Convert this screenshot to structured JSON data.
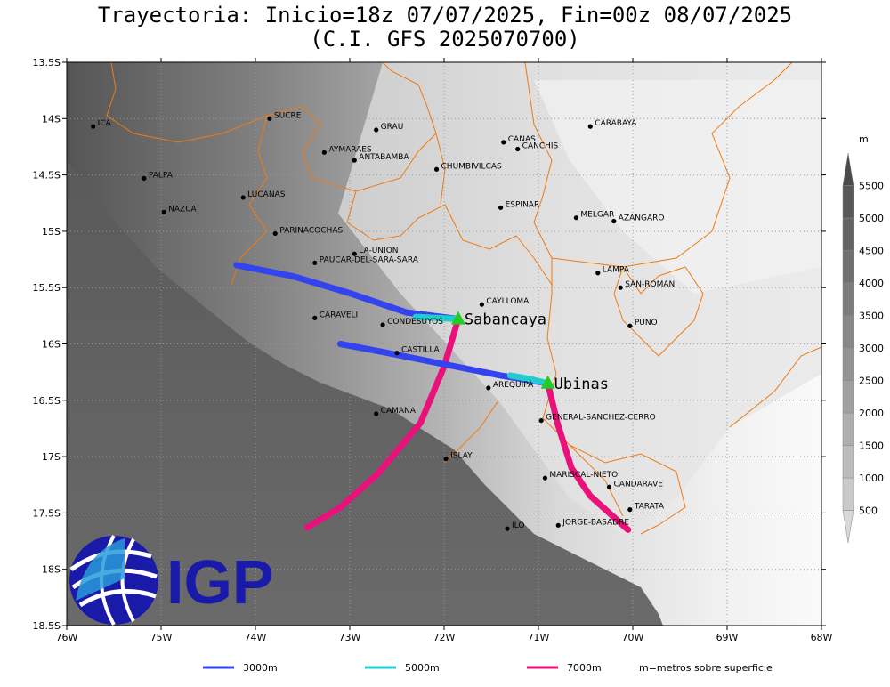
{
  "title": {
    "line1": "Trayectoria: Inicio=18z 07/07/2025, Fin=00z 08/07/2025",
    "line2": "(C.I. GFS 2025070700)"
  },
  "axes": {
    "lat_ticks": [
      "13.5S",
      "14S",
      "14.5S",
      "15S",
      "15.5S",
      "16S",
      "16.5S",
      "17S",
      "17.5S",
      "18S",
      "18.5S"
    ],
    "lon_ticks": [
      "76W",
      "75W",
      "74W",
      "73W",
      "72W",
      "71W",
      "70W",
      "69W",
      "68W"
    ],
    "lat_range": [
      -18.5,
      -13.5
    ],
    "lon_range": [
      -76,
      -68
    ]
  },
  "places": [
    {
      "name": "ICA",
      "lon": -75.72,
      "lat": -14.07
    },
    {
      "name": "SUCRE",
      "lon": -73.85,
      "lat": -14.0
    },
    {
      "name": "GRAU",
      "lon": -72.72,
      "lat": -14.1
    },
    {
      "name": "AYMARAES",
      "lon": -73.27,
      "lat": -14.3
    },
    {
      "name": "ANTABAMBA",
      "lon": -72.95,
      "lat": -14.37
    },
    {
      "name": "CHUMBIVILCAS",
      "lon": -72.08,
      "lat": -14.45
    },
    {
      "name": "CANAS",
      "lon": -71.37,
      "lat": -14.21
    },
    {
      "name": "CANCHIS",
      "lon": -71.22,
      "lat": -14.27
    },
    {
      "name": "CARABAYA",
      "lon": -70.45,
      "lat": -14.07
    },
    {
      "name": "PALPA",
      "lon": -75.18,
      "lat": -14.53
    },
    {
      "name": "LUCANAS",
      "lon": -74.13,
      "lat": -14.7
    },
    {
      "name": "NAZCA",
      "lon": -74.97,
      "lat": -14.83
    },
    {
      "name": "ESPINAR",
      "lon": -71.4,
      "lat": -14.79
    },
    {
      "name": "MELGAR",
      "lon": -70.6,
      "lat": -14.88
    },
    {
      "name": "AZANGARO",
      "lon": -70.2,
      "lat": -14.91
    },
    {
      "name": "PARINACOCHAS",
      "lon": -73.79,
      "lat": -15.02
    },
    {
      "name": "LA-UNION",
      "lon": -72.95,
      "lat": -15.2
    },
    {
      "name": "PAUCAR-DEL-SARA-SARA",
      "lon": -73.37,
      "lat": -15.28
    },
    {
      "name": "LAMPA",
      "lon": -70.37,
      "lat": -15.37
    },
    {
      "name": "SAN-ROMAN",
      "lon": -70.13,
      "lat": -15.5
    },
    {
      "name": "CAYLLOMA",
      "lon": -71.6,
      "lat": -15.65
    },
    {
      "name": "CARAVELI",
      "lon": -73.37,
      "lat": -15.77
    },
    {
      "name": "CONDESUYOS",
      "lon": -72.65,
      "lat": -15.83
    },
    {
      "name": "PUNO",
      "lon": -70.03,
      "lat": -15.84
    },
    {
      "name": "CASTILLA",
      "lon": -72.5,
      "lat": -16.08
    },
    {
      "name": "AREQUIPA",
      "lon": -71.53,
      "lat": -16.39
    },
    {
      "name": "CAMANA",
      "lon": -72.72,
      "lat": -16.62
    },
    {
      "name": "GENERAL-SANCHEZ-CERRO",
      "lon": -70.97,
      "lat": -16.68
    },
    {
      "name": "ISLAY",
      "lon": -71.98,
      "lat": -17.02
    },
    {
      "name": "MARISCAL-NIETO",
      "lon": -70.93,
      "lat": -17.19
    },
    {
      "name": "CANDARAVE",
      "lon": -70.25,
      "lat": -17.27
    },
    {
      "name": "TARATA",
      "lon": -70.03,
      "lat": -17.47
    },
    {
      "name": "ILO",
      "lon": -71.33,
      "lat": -17.64
    },
    {
      "name": "JORGE-BASADRE",
      "lon": -70.79,
      "lat": -17.61
    }
  ],
  "volcanoes": [
    {
      "name": "Sabancaya",
      "lon": -71.85,
      "lat": -15.78
    },
    {
      "name": "Ubinas",
      "lon": -70.9,
      "lat": -16.35
    }
  ],
  "trajectories": [
    {
      "volcano": "Sabancaya",
      "level": "3000m",
      "color": "#3344ee",
      "points": [
        [
          -71.85,
          -15.78
        ],
        [
          -72.4,
          -15.72
        ],
        [
          -73.0,
          -15.55
        ],
        [
          -73.6,
          -15.4
        ],
        [
          -74.2,
          -15.3
        ]
      ]
    },
    {
      "volcano": "Sabancaya",
      "level": "5000m",
      "color": "#22cccc",
      "points": [
        [
          -71.85,
          -15.78
        ],
        [
          -72.05,
          -15.77
        ],
        [
          -72.3,
          -15.76
        ]
      ]
    },
    {
      "volcano": "Sabancaya",
      "level": "7000m",
      "color": "#e8127a",
      "points": [
        [
          -71.85,
          -15.78
        ],
        [
          -72.0,
          -16.2
        ],
        [
          -72.25,
          -16.7
        ],
        [
          -72.7,
          -17.15
        ],
        [
          -73.1,
          -17.45
        ],
        [
          -73.45,
          -17.63
        ]
      ]
    },
    {
      "volcano": "Ubinas",
      "level": "3000m",
      "color": "#3344ee",
      "points": [
        [
          -70.9,
          -16.35
        ],
        [
          -71.4,
          -16.28
        ],
        [
          -72.0,
          -16.18
        ],
        [
          -72.6,
          -16.08
        ],
        [
          -73.1,
          -16.0
        ]
      ]
    },
    {
      "volcano": "Ubinas",
      "level": "5000m",
      "color": "#22cccc",
      "points": [
        [
          -70.9,
          -16.35
        ],
        [
          -71.1,
          -16.31
        ],
        [
          -71.3,
          -16.28
        ]
      ]
    },
    {
      "volcano": "Ubinas",
      "level": "7000m",
      "color": "#e8127a",
      "points": [
        [
          -70.9,
          -16.35
        ],
        [
          -70.8,
          -16.7
        ],
        [
          -70.65,
          -17.1
        ],
        [
          -70.45,
          -17.35
        ],
        [
          -70.05,
          -17.65
        ]
      ]
    }
  ],
  "colorbar": {
    "unit": "m",
    "labels": [
      "500",
      "1000",
      "1500",
      "2000",
      "2500",
      "3000",
      "3500",
      "4000",
      "4500",
      "5000",
      "5500"
    ],
    "colors": [
      "#d8d8d8",
      "#cacaca",
      "#bcbcbc",
      "#aeaeae",
      "#a0a0a0",
      "#949494",
      "#888888",
      "#7c7c7c",
      "#707070",
      "#646464",
      "#585858",
      "#4a4a4a"
    ]
  },
  "legend": {
    "items": [
      {
        "label": "3000m",
        "color": "#3344ee"
      },
      {
        "label": "5000m",
        "color": "#22cccc"
      },
      {
        "label": "7000m",
        "color": "#e8127a"
      }
    ],
    "note": "m=metros sobre superficie"
  },
  "logo": {
    "text": "IGP",
    "color": "#1a1aa8"
  }
}
